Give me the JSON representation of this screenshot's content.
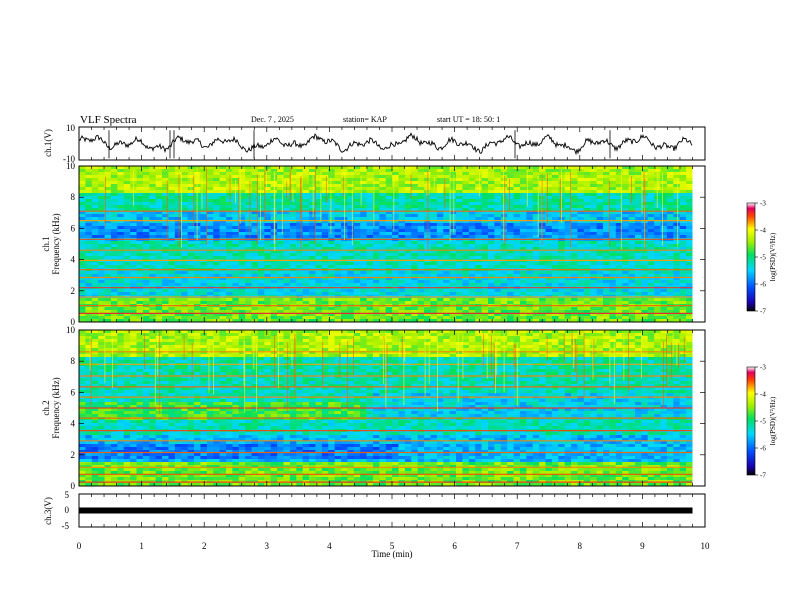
{
  "header": {
    "title": "VLF Spectra",
    "date": "Dec. 7 , 2025",
    "station": "station= KAP",
    "start_ut": "start UT = 18: 50: 1"
  },
  "chart_data": [
    {
      "type": "line",
      "panel": "ch1-waveform",
      "ylabel": "ch.1(V)",
      "ylim": [
        -10,
        10
      ],
      "y_ticks": [
        "10",
        "-10"
      ],
      "x_range_min": [
        0,
        9.8
      ]
    },
    {
      "type": "heatmap",
      "panel": "ch1-spectrogram",
      "ylabel_channel": "ch.1",
      "ylabel": "Frequency (kHz)",
      "ylim": [
        0,
        10
      ],
      "y_ticks": [
        "0",
        "2",
        "4",
        "6",
        "8",
        "10"
      ],
      "colorbar_label": "log(PSD)(V²/Hz)",
      "colorbar_range": [
        -7,
        -3
      ],
      "colorbar_ticks": [
        "-3",
        "-4",
        "-5",
        "-6",
        "-7"
      ]
    },
    {
      "type": "heatmap",
      "panel": "ch2-spectrogram",
      "ylabel_channel": "ch.2",
      "ylabel": "Frequency (kHz)",
      "ylim": [
        0,
        10
      ],
      "y_ticks": [
        "0",
        "2",
        "4",
        "6",
        "8",
        "10"
      ],
      "colorbar_label": "log(PSD)(V²/Hz)",
      "colorbar_range": [
        -7,
        -3
      ],
      "colorbar_ticks": [
        "-3",
        "-4",
        "-5",
        "-6",
        "-7"
      ]
    },
    {
      "type": "line",
      "panel": "ch3-waveform",
      "ylabel": "ch.3(V)",
      "ylim": [
        -5,
        5
      ],
      "y_ticks": [
        "5",
        "0",
        "-5"
      ],
      "level_v": 0,
      "x_range_min": [
        0,
        9.8
      ]
    }
  ],
  "x_axis": {
    "xlabel": "Time (min)",
    "xlim": [
      0,
      10
    ],
    "tick_labels": [
      "0",
      "1",
      "2",
      "3",
      "4",
      "5",
      "6",
      "7",
      "8",
      "9",
      "10"
    ]
  }
}
